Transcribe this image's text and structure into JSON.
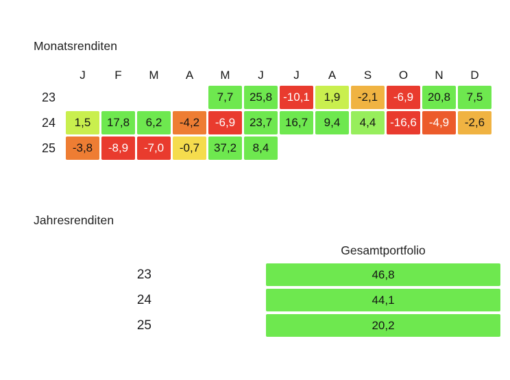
{
  "colors": {
    "green": "#6ee84f",
    "light_green": "#97ee5c",
    "yellow_green": "#c9ef4e",
    "yellow": "#f5dc4d",
    "amber": "#f0b342",
    "orange": "#ee7d33",
    "deep_orange": "#ec5b2b",
    "red": "#e93b2e",
    "text_dark": "#141414",
    "text_light": "#ffffff"
  },
  "monthly": {
    "title": "Monatsrenditen",
    "months": [
      "J",
      "F",
      "M",
      "A",
      "M",
      "J",
      "J",
      "A",
      "S",
      "O",
      "N",
      "D"
    ],
    "rows": [
      {
        "year": "23",
        "cells": [
          null,
          null,
          null,
          null,
          {
            "value": "7,7",
            "color": "green",
            "text": "dark"
          },
          {
            "value": "25,8",
            "color": "green",
            "text": "dark"
          },
          {
            "value": "-10,1",
            "color": "red",
            "text": "light"
          },
          {
            "value": "1,9",
            "color": "yellow_green",
            "text": "dark"
          },
          {
            "value": "-2,1",
            "color": "amber",
            "text": "dark"
          },
          {
            "value": "-6,9",
            "color": "red",
            "text": "light"
          },
          {
            "value": "20,8",
            "color": "green",
            "text": "dark"
          },
          {
            "value": "7,5",
            "color": "green",
            "text": "dark"
          }
        ]
      },
      {
        "year": "24",
        "cells": [
          {
            "value": "1,5",
            "color": "yellow_green",
            "text": "dark"
          },
          {
            "value": "17,8",
            "color": "green",
            "text": "dark"
          },
          {
            "value": "6,2",
            "color": "green",
            "text": "dark"
          },
          {
            "value": "-4,2",
            "color": "orange",
            "text": "dark"
          },
          {
            "value": "-6,9",
            "color": "red",
            "text": "light"
          },
          {
            "value": "23,7",
            "color": "green",
            "text": "dark"
          },
          {
            "value": "16,7",
            "color": "green",
            "text": "dark"
          },
          {
            "value": "9,4",
            "color": "green",
            "text": "dark"
          },
          {
            "value": "4,4",
            "color": "light_green",
            "text": "dark"
          },
          {
            "value": "-16,6",
            "color": "red",
            "text": "light"
          },
          {
            "value": "-4,9",
            "color": "deep_orange",
            "text": "light"
          },
          {
            "value": "-2,6",
            "color": "amber",
            "text": "dark"
          }
        ]
      },
      {
        "year": "25",
        "cells": [
          {
            "value": "-3,8",
            "color": "orange",
            "text": "dark"
          },
          {
            "value": "-8,9",
            "color": "red",
            "text": "light"
          },
          {
            "value": "-7,0",
            "color": "red",
            "text": "light"
          },
          {
            "value": "-0,7",
            "color": "yellow",
            "text": "dark"
          },
          {
            "value": "37,2",
            "color": "green",
            "text": "dark"
          },
          {
            "value": "8,4",
            "color": "green",
            "text": "dark"
          },
          null,
          null,
          null,
          null,
          null,
          null
        ]
      }
    ]
  },
  "annual": {
    "title": "Jahresrenditen",
    "column_header": "Gesamtportfolio",
    "rows": [
      {
        "year": "23",
        "value": "46,8",
        "color": "green"
      },
      {
        "year": "24",
        "value": "44,1",
        "color": "green"
      },
      {
        "year": "25",
        "value": "20,2",
        "color": "green"
      }
    ]
  },
  "chart_data": [
    {
      "type": "heatmap",
      "title": "Monatsrenditen",
      "x_labels": [
        "J",
        "F",
        "M",
        "A",
        "M",
        "J",
        "J",
        "A",
        "S",
        "O",
        "N",
        "D"
      ],
      "y_labels": [
        "23",
        "24",
        "25"
      ],
      "values": [
        [
          null,
          null,
          null,
          null,
          7.7,
          25.8,
          -10.1,
          1.9,
          -2.1,
          -6.9,
          20.8,
          7.5
        ],
        [
          1.5,
          17.8,
          6.2,
          -4.2,
          -6.9,
          23.7,
          16.7,
          9.4,
          4.4,
          -16.6,
          -4.9,
          -2.6
        ],
        [
          -3.8,
          -8.9,
          -7.0,
          -0.7,
          37.2,
          8.4,
          null,
          null,
          null,
          null,
          null,
          null
        ]
      ],
      "legend": "off",
      "color_scale": "red (negative) to green (positive)"
    },
    {
      "type": "bar",
      "title": "Jahresrenditen",
      "series_label": "Gesamtportfolio",
      "categories": [
        "23",
        "24",
        "25"
      ],
      "values": [
        46.8,
        44.1,
        20.2
      ]
    }
  ]
}
